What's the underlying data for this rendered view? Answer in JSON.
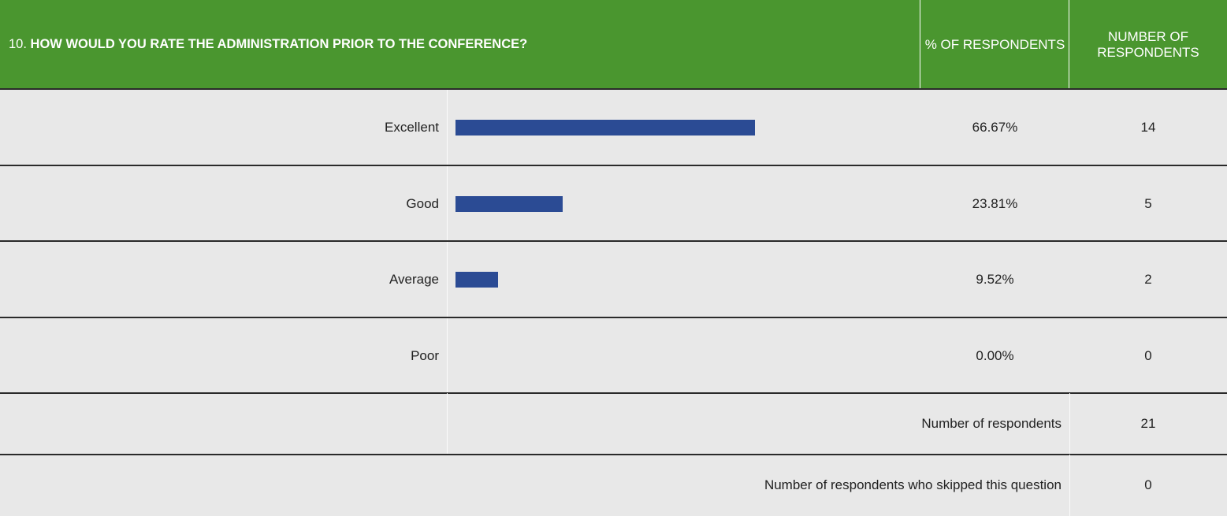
{
  "header": {
    "number": "10.",
    "question": "HOW WOULD YOU RATE THE ADMINISTRATION PRIOR TO THE CONFERENCE?",
    "col_percent": "% OF RESPONDENTS",
    "col_count": "NUMBER OF RESPONDENTS"
  },
  "rows": [
    {
      "label": "Excellent",
      "percent": 66.67,
      "percent_label": "66.67%",
      "count": 14
    },
    {
      "label": "Good",
      "percent": 23.81,
      "percent_label": "23.81%",
      "count": 5
    },
    {
      "label": "Average",
      "percent": 9.52,
      "percent_label": "9.52%",
      "count": 2
    },
    {
      "label": "Poor",
      "percent": 0,
      "percent_label": "0.00%",
      "count": 0
    }
  ],
  "total": {
    "label": "Number of respondents",
    "value": 21
  },
  "skipped": {
    "label": "Number of respondents who skipped this question",
    "value": 0
  }
}
